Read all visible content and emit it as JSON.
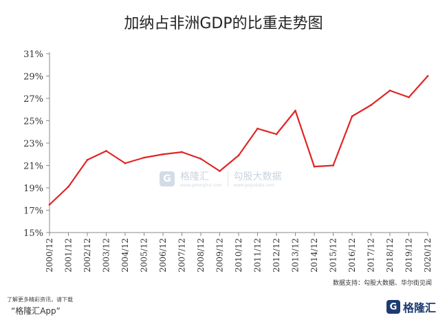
{
  "title": "加纳占非洲GDP的比重走势图",
  "source": "数据支持：勾股大数据、华尔街见闻",
  "footer": {
    "cta": "了解更多精彩资讯，请下载",
    "app": "“格隆汇App”",
    "logo_text": "格隆汇",
    "logo_mark": "G"
  },
  "watermark": {
    "brand": "格隆汇",
    "brand_sub": "www.gelonghui.com",
    "partner": "勾股大数据",
    "partner_sub": "www.gogudata.com",
    "mark": "G"
  },
  "colors": {
    "line": "#e02424",
    "axis": "#888888",
    "text": "#333333"
  },
  "chart_data": {
    "type": "line",
    "title": "加纳占非洲GDP的比重走势图",
    "xlabel": "",
    "ylabel": "",
    "ylim": [
      15,
      31
    ],
    "yticks": [
      15,
      17,
      19,
      21,
      23,
      25,
      27,
      29,
      31
    ],
    "ytick_labels": [
      "15%",
      "17%",
      "19%",
      "21%",
      "23%",
      "25%",
      "27%",
      "29%",
      "31%"
    ],
    "grid": false,
    "categories": [
      "2000/12",
      "2001/12",
      "2002/12",
      "2003/12",
      "2004/12",
      "2005/12",
      "2006/12",
      "2007/12",
      "2008/12",
      "2009/12",
      "2010/12",
      "2011/12",
      "2012/12",
      "2013/12",
      "2014/12",
      "2015/12",
      "2016/12",
      "2017/12",
      "2018/12",
      "2019/12",
      "2020/12"
    ],
    "series": [
      {
        "values": [
          17.5,
          19.1,
          21.5,
          22.3,
          21.2,
          21.7,
          22.0,
          22.2,
          21.6,
          20.5,
          21.9,
          24.3,
          23.8,
          25.9,
          20.9,
          21.0,
          25.4,
          26.4,
          27.7,
          27.1,
          29.0
        ]
      }
    ]
  }
}
